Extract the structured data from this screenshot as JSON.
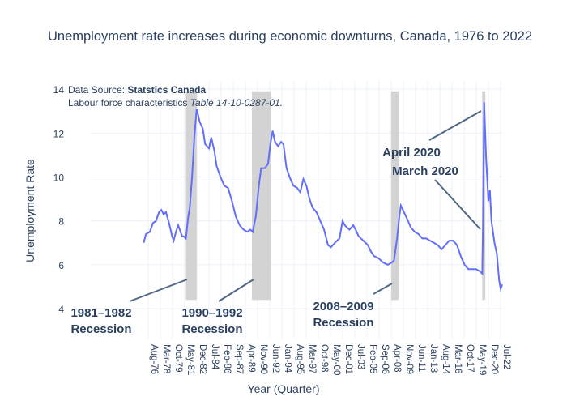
{
  "chart_data": {
    "type": "line",
    "title": "Unemployment rate increases during economic downturns, Canada, 1976 to 2022",
    "xlabel": "Year (Quarter)",
    "ylabel": "Unemployment Rate",
    "ylim": [
      2.64,
      14.37
    ],
    "xlim": [
      1969.1,
      2022.7
    ],
    "y_ticks": [
      4,
      6,
      8,
      10,
      12,
      14
    ],
    "x_ticks": [
      {
        "label": "Aug-76",
        "t": 1976.58
      },
      {
        "label": "Mar-78",
        "t": 1978.17
      },
      {
        "label": "Oct-79",
        "t": 1979.75
      },
      {
        "label": "May-81",
        "t": 1981.33
      },
      {
        "label": "Dec-82",
        "t": 1982.92
      },
      {
        "label": "Jul-84",
        "t": 1984.5
      },
      {
        "label": "Feb-86",
        "t": 1986.08
      },
      {
        "label": "Sep-87",
        "t": 1987.67
      },
      {
        "label": "Apr-89",
        "t": 1989.25
      },
      {
        "label": "Nov-90",
        "t": 1990.83
      },
      {
        "label": "Jun-92",
        "t": 1992.42
      },
      {
        "label": "Jan-94",
        "t": 1994.0
      },
      {
        "label": "Aug-95",
        "t": 1995.58
      },
      {
        "label": "Mar-97",
        "t": 1997.17
      },
      {
        "label": "Oct-98",
        "t": 1998.75
      },
      {
        "label": "May-00",
        "t": 2000.33
      },
      {
        "label": "Dec-01",
        "t": 2001.92
      },
      {
        "label": "Jul-03",
        "t": 2003.5
      },
      {
        "label": "Feb-05",
        "t": 2005.08
      },
      {
        "label": "Sep-06",
        "t": 2006.67
      },
      {
        "label": "Apr-08",
        "t": 2008.25
      },
      {
        "label": "Nov-09",
        "t": 2009.83
      },
      {
        "label": "Jun-11",
        "t": 2011.42
      },
      {
        "label": "Jan-13",
        "t": 2013.0
      },
      {
        "label": "Aug-14",
        "t": 2014.58
      },
      {
        "label": "Mar-16",
        "t": 2016.17
      },
      {
        "label": "Oct-17",
        "t": 2017.75
      },
      {
        "label": "May-19",
        "t": 2019.33
      },
      {
        "label": "Dec-20",
        "t": 2020.92
      },
      {
        "label": "Jul-22",
        "t": 2022.5
      }
    ],
    "series": [
      {
        "name": "Unemployment rate",
        "color": "#636efa",
        "points": [
          [
            1976.0,
            7.0
          ],
          [
            1976.3,
            7.4
          ],
          [
            1976.8,
            7.5
          ],
          [
            1977.2,
            7.9
          ],
          [
            1977.6,
            8.0
          ],
          [
            1978.0,
            8.4
          ],
          [
            1978.3,
            8.5
          ],
          [
            1978.6,
            8.3
          ],
          [
            1978.9,
            8.4
          ],
          [
            1979.3,
            7.9
          ],
          [
            1979.7,
            7.3
          ],
          [
            1979.9,
            7.1
          ],
          [
            1980.2,
            7.5
          ],
          [
            1980.5,
            7.8
          ],
          [
            1980.8,
            7.5
          ],
          [
            1981.0,
            7.3
          ],
          [
            1981.2,
            7.3
          ],
          [
            1981.5,
            7.2
          ],
          [
            1981.8,
            8.2
          ],
          [
            1982.0,
            8.6
          ],
          [
            1982.3,
            10.0
          ],
          [
            1982.6,
            11.8
          ],
          [
            1982.9,
            13.1
          ],
          [
            1983.3,
            12.5
          ],
          [
            1983.7,
            12.2
          ],
          [
            1984.0,
            11.5
          ],
          [
            1984.5,
            11.3
          ],
          [
            1984.8,
            11.8
          ],
          [
            1985.2,
            11.2
          ],
          [
            1985.5,
            10.5
          ],
          [
            1986.0,
            10.0
          ],
          [
            1986.5,
            9.6
          ],
          [
            1987.0,
            9.5
          ],
          [
            1987.5,
            8.9
          ],
          [
            1988.0,
            8.2
          ],
          [
            1988.5,
            7.8
          ],
          [
            1989.0,
            7.6
          ],
          [
            1989.5,
            7.5
          ],
          [
            1989.9,
            7.6
          ],
          [
            1990.2,
            7.5
          ],
          [
            1990.6,
            8.2
          ],
          [
            1991.0,
            9.6
          ],
          [
            1991.3,
            10.4
          ],
          [
            1991.8,
            10.4
          ],
          [
            1992.2,
            10.6
          ],
          [
            1992.5,
            11.5
          ],
          [
            1992.8,
            12.1
          ],
          [
            1993.1,
            11.6
          ],
          [
            1993.5,
            11.4
          ],
          [
            1993.9,
            11.6
          ],
          [
            1994.2,
            11.5
          ],
          [
            1994.6,
            10.4
          ],
          [
            1995.0,
            10.0
          ],
          [
            1995.5,
            9.6
          ],
          [
            1996.0,
            9.5
          ],
          [
            1996.4,
            9.3
          ],
          [
            1996.8,
            9.9
          ],
          [
            1997.2,
            9.6
          ],
          [
            1997.6,
            9.0
          ],
          [
            1998.0,
            8.6
          ],
          [
            1998.5,
            8.4
          ],
          [
            1999.0,
            8.0
          ],
          [
            1999.5,
            7.6
          ],
          [
            2000.0,
            6.9
          ],
          [
            2000.4,
            6.8
          ],
          [
            2000.9,
            7.0
          ],
          [
            2001.5,
            7.2
          ],
          [
            2001.9,
            8.0
          ],
          [
            2002.2,
            7.8
          ],
          [
            2002.8,
            7.6
          ],
          [
            2003.3,
            7.8
          ],
          [
            2003.6,
            7.6
          ],
          [
            2004.0,
            7.3
          ],
          [
            2004.6,
            7.1
          ],
          [
            2005.2,
            6.9
          ],
          [
            2005.6,
            6.6
          ],
          [
            2006.0,
            6.4
          ],
          [
            2006.6,
            6.3
          ],
          [
            2007.2,
            6.1
          ],
          [
            2007.8,
            6.0
          ],
          [
            2008.3,
            6.1
          ],
          [
            2008.6,
            6.2
          ],
          [
            2009.0,
            7.2
          ],
          [
            2009.3,
            8.2
          ],
          [
            2009.5,
            8.7
          ],
          [
            2009.9,
            8.4
          ],
          [
            2010.3,
            8.1
          ],
          [
            2010.8,
            7.7
          ],
          [
            2011.3,
            7.5
          ],
          [
            2011.8,
            7.4
          ],
          [
            2012.3,
            7.2
          ],
          [
            2012.8,
            7.2
          ],
          [
            2013.3,
            7.1
          ],
          [
            2013.8,
            7.0
          ],
          [
            2014.3,
            6.9
          ],
          [
            2014.8,
            6.7
          ],
          [
            2015.3,
            6.9
          ],
          [
            2015.8,
            7.1
          ],
          [
            2016.3,
            7.1
          ],
          [
            2016.8,
            6.9
          ],
          [
            2017.3,
            6.4
          ],
          [
            2017.8,
            6.0
          ],
          [
            2018.3,
            5.8
          ],
          [
            2018.8,
            5.8
          ],
          [
            2019.3,
            5.8
          ],
          [
            2019.8,
            5.7
          ],
          [
            2020.1,
            5.6
          ],
          [
            2020.2,
            7.9
          ],
          [
            2020.35,
            13.4
          ],
          [
            2020.6,
            10.9
          ],
          [
            2020.9,
            8.9
          ],
          [
            2021.1,
            9.4
          ],
          [
            2021.3,
            8.0
          ],
          [
            2021.7,
            7.0
          ],
          [
            2022.0,
            6.5
          ],
          [
            2022.3,
            5.3
          ],
          [
            2022.5,
            4.9
          ],
          [
            2022.7,
            5.1
          ]
        ]
      }
    ],
    "recessions": [
      {
        "start": 1981.5,
        "end": 1982.9,
        "label1": "1981–1982",
        "label2": "Recession"
      },
      {
        "start": 1990.1,
        "end": 1992.6,
        "label1": "1990–1992",
        "label2": "Recession"
      },
      {
        "start": 2008.25,
        "end": 2009.2,
        "label1": "2008–2009",
        "label2": "Recession"
      },
      {
        "start": 2020.1,
        "end": 2020.5
      }
    ],
    "shade_range": [
      4.4,
      13.9
    ],
    "annotations": {
      "april": "April 2020",
      "march": "March 2020"
    },
    "source": {
      "prefix": "Data Source: ",
      "name": "Statstics Canada",
      "line2": "Labour force characteristics ",
      "table": "Table 14-10-0287-01."
    }
  }
}
